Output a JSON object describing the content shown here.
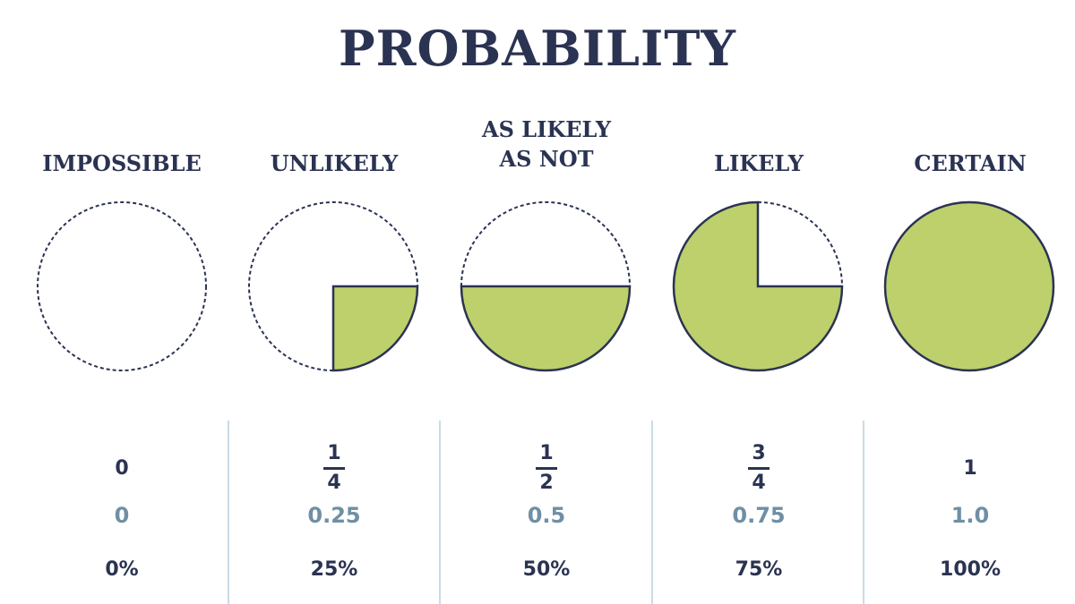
{
  "title": "PROBABILITY",
  "colors": {
    "fill": "#bdd06b",
    "ink": "#2b3352",
    "decimal": "#6f8fa4",
    "divider": "#c9dce6"
  },
  "items": [
    {
      "label_lines": [
        "IMPOSSIBLE"
      ],
      "probability": 0,
      "fraction": {
        "whole": "0"
      },
      "decimal": "0",
      "percent": "0%"
    },
    {
      "label_lines": [
        "UNLIKELY"
      ],
      "probability": 0.25,
      "fraction": {
        "numerator": "1",
        "denominator": "4"
      },
      "decimal": "0.25",
      "percent": "25%"
    },
    {
      "label_lines": [
        "AS LIKELY",
        "AS NOT"
      ],
      "probability": 0.5,
      "fraction": {
        "numerator": "1",
        "denominator": "2"
      },
      "decimal": "0.5",
      "percent": "50%"
    },
    {
      "label_lines": [
        "LIKELY"
      ],
      "probability": 0.75,
      "fraction": {
        "numerator": "3",
        "denominator": "4"
      },
      "decimal": "0.75",
      "percent": "75%"
    },
    {
      "label_lines": [
        "CERTAIN"
      ],
      "probability": 1,
      "fraction": {
        "whole": "1"
      },
      "decimal": "1.0",
      "percent": "100%"
    }
  ]
}
